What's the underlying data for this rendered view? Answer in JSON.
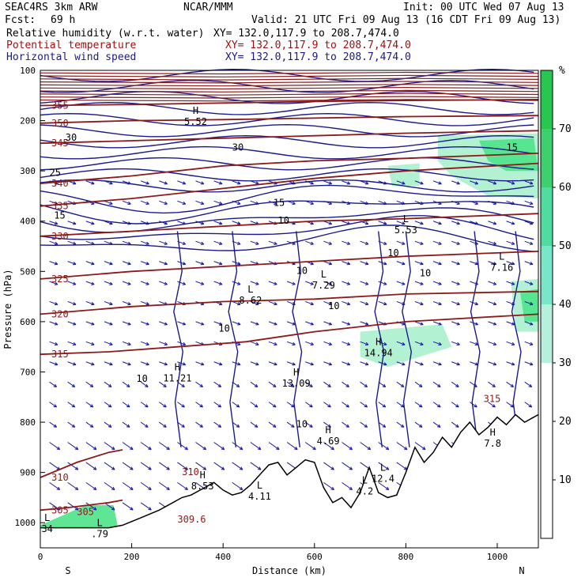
{
  "header": {
    "model": "SEAC4RS 3km ARW",
    "org": "NCAR/MMM",
    "init": "Init: 00 UTC Wed 07 Aug 13",
    "fcst_label": "Fcst:",
    "fcst_value": "69 h",
    "valid": "Valid: 21 UTC Fri 09 Aug 13 (16 CDT Fri 09 Aug 13)",
    "fields": [
      {
        "name": "Relative humidity (w.r.t. water)",
        "xy": "XY= 132.0,117.9 to 208.7,474.0"
      },
      {
        "name": "Potential temperature",
        "xy": "XY= 132.0,117.9 to 208.7,474.0"
      },
      {
        "name": "Horizontal wind speed",
        "xy": "XY= 132.0,117.9 to 208.7,474.0"
      }
    ]
  },
  "colors": {
    "rh_fill": "#4de38a",
    "rh_light": "#aaf0cc",
    "theta": "#8b1a1a",
    "wind_speed": "#1a1a8a",
    "vectors": "#1a1aa0",
    "terrain": "#000000"
  },
  "chart_data": {
    "type": "cross-section",
    "xlabel": "Distance (km)",
    "ylabel": "Pressure (hPa)",
    "x_ticks": [
      0,
      200,
      400,
      600,
      800,
      1000
    ],
    "y_ticks": [
      100,
      200,
      300,
      400,
      500,
      600,
      700,
      800,
      900,
      1000
    ],
    "xlim": [
      0,
      1090
    ],
    "ylim": [
      1050,
      100
    ],
    "endpoints": {
      "left": "S",
      "right": "N"
    },
    "colorbar": {
      "unit": "%",
      "ticks": [
        10,
        20,
        30,
        40,
        50,
        60,
        70
      ],
      "colors": [
        "#ffffff",
        "#ffffff",
        "#ffffff",
        "#b4f0dc",
        "#78e6c8",
        "#50dca0",
        "#3cd06e",
        "#28c850"
      ]
    },
    "theta_contours": [
      {
        "label": "305",
        "values": [
          [
            0,
            975
          ],
          [
            60,
            970
          ],
          [
            150,
            960
          ],
          [
            180,
            955
          ]
        ]
      },
      {
        "label": "310",
        "values": [
          [
            0,
            910
          ],
          [
            80,
            880
          ],
          [
            150,
            860
          ],
          [
            180,
            855
          ]
        ]
      },
      {
        "label": "315",
        "values": [
          [
            0,
            665
          ],
          [
            150,
            660
          ],
          [
            300,
            650
          ],
          [
            450,
            640
          ],
          [
            600,
            620
          ],
          [
            800,
            600
          ],
          [
            1090,
            585
          ]
        ]
      },
      {
        "label": "320",
        "values": [
          [
            0,
            585
          ],
          [
            200,
            570
          ],
          [
            400,
            560
          ],
          [
            600,
            555
          ],
          [
            800,
            545
          ],
          [
            1090,
            540
          ]
        ]
      },
      {
        "label": "325",
        "values": [
          [
            0,
            515
          ],
          [
            200,
            500
          ],
          [
            400,
            490
          ],
          [
            600,
            480
          ],
          [
            800,
            470
          ],
          [
            1090,
            460
          ]
        ]
      },
      {
        "label": "330",
        "values": [
          [
            0,
            430
          ],
          [
            200,
            420
          ],
          [
            400,
            410
          ],
          [
            600,
            400
          ],
          [
            800,
            395
          ],
          [
            1090,
            385
          ]
        ]
      },
      {
        "label": "335",
        "values": [
          [
            0,
            370
          ],
          [
            200,
            355
          ],
          [
            400,
            335
          ],
          [
            600,
            315
          ],
          [
            800,
            300
          ],
          [
            1090,
            285
          ]
        ]
      },
      {
        "label": "340",
        "values": [
          [
            0,
            325
          ],
          [
            200,
            310
          ],
          [
            400,
            290
          ],
          [
            600,
            280
          ],
          [
            800,
            275
          ],
          [
            1090,
            265
          ]
        ]
      },
      {
        "label": "345",
        "values": [
          [
            0,
            245
          ],
          [
            200,
            240
          ],
          [
            400,
            235
          ],
          [
            600,
            230
          ],
          [
            800,
            225
          ],
          [
            1090,
            220
          ]
        ]
      },
      {
        "label": "350",
        "values": [
          [
            0,
            205
          ],
          [
            200,
            200
          ],
          [
            400,
            198
          ],
          [
            600,
            195
          ],
          [
            800,
            192
          ],
          [
            1090,
            190
          ]
        ]
      },
      {
        "label": "355",
        "values": [
          [
            0,
            170
          ],
          [
            200,
            168
          ],
          [
            400,
            165
          ],
          [
            600,
            162
          ],
          [
            800,
            160
          ],
          [
            1090,
            158
          ]
        ]
      }
    ],
    "speed_labels": [
      {
        "text": "25",
        "x": 20,
        "y": 310
      },
      {
        "text": "30",
        "x": 55,
        "y": 240
      },
      {
        "text": "15",
        "x": 30,
        "y": 395
      },
      {
        "text": "10",
        "x": 520,
        "y": 405
      },
      {
        "text": "10",
        "x": 560,
        "y": 505
      },
      {
        "text": "10",
        "x": 390,
        "y": 620
      },
      {
        "text": "10",
        "x": 630,
        "y": 575
      },
      {
        "text": "10",
        "x": 760,
        "y": 470
      },
      {
        "text": "10",
        "x": 830,
        "y": 510
      },
      {
        "text": "10",
        "x": 210,
        "y": 720
      },
      {
        "text": "10",
        "x": 560,
        "y": 810
      },
      {
        "text": "30",
        "x": 420,
        "y": 260
      },
      {
        "text": "15",
        "x": 510,
        "y": 370
      },
      {
        "text": "15",
        "x": 1020,
        "y": 260
      }
    ],
    "extrema": [
      {
        "type": "L",
        "value": "5.53",
        "x": 800,
        "y": 405
      },
      {
        "type": "L",
        "value": "7.16",
        "x": 1010,
        "y": 480
      },
      {
        "type": "L",
        "value": "7.29",
        "x": 620,
        "y": 515
      },
      {
        "type": "L",
        "value": "8.62",
        "x": 460,
        "y": 545
      },
      {
        "type": "H",
        "value": "14.94",
        "x": 740,
        "y": 650
      },
      {
        "type": "H",
        "value": "11.21",
        "x": 300,
        "y": 700
      },
      {
        "type": "H",
        "value": "13.09",
        "x": 560,
        "y": 710
      },
      {
        "type": "H",
        "value": "4.69",
        "x": 630,
        "y": 825
      },
      {
        "type": "H",
        "value": "8.53",
        "x": 355,
        "y": 915
      },
      {
        "type": "L",
        "value": "4.11",
        "x": 480,
        "y": 935
      },
      {
        "type": "L",
        "value": "12.4",
        "x": 750,
        "y": 900
      },
      {
        "type": "L",
        "value": "4.2",
        "x": 710,
        "y": 925
      },
      {
        "type": "L",
        "value": "34",
        "x": 15,
        "y": 1000
      },
      {
        "type": "L",
        "value": ".79",
        "x": 130,
        "y": 1010
      },
      {
        "type": "H",
        "value": "7.8",
        "x": 990,
        "y": 830
      },
      {
        "type": "H",
        "value": "5.52",
        "x": 340,
        "y": 190
      }
    ],
    "theta_extra_labels": [
      {
        "text": "305",
        "x": 80,
        "y": 985
      },
      {
        "text": "310",
        "x": 310,
        "y": 905
      },
      {
        "text": "309.6",
        "x": 300,
        "y": 1000
      },
      {
        "text": "315",
        "x": 970,
        "y": 760
      }
    ],
    "terrain": [
      [
        0,
        1010
      ],
      [
        100,
        1010
      ],
      [
        150,
        1010
      ],
      [
        180,
        1005
      ],
      [
        220,
        990
      ],
      [
        260,
        975
      ],
      [
        290,
        960
      ],
      [
        310,
        950
      ],
      [
        330,
        945
      ],
      [
        360,
        930
      ],
      [
        380,
        920
      ],
      [
        400,
        935
      ],
      [
        420,
        945
      ],
      [
        440,
        940
      ],
      [
        460,
        925
      ],
      [
        480,
        905
      ],
      [
        500,
        885
      ],
      [
        520,
        880
      ],
      [
        540,
        905
      ],
      [
        560,
        890
      ],
      [
        580,
        875
      ],
      [
        600,
        880
      ],
      [
        620,
        930
      ],
      [
        640,
        960
      ],
      [
        660,
        950
      ],
      [
        680,
        970
      ],
      [
        700,
        940
      ],
      [
        720,
        890
      ],
      [
        740,
        940
      ],
      [
        760,
        950
      ],
      [
        780,
        945
      ],
      [
        800,
        900
      ],
      [
        820,
        850
      ],
      [
        840,
        880
      ],
      [
        860,
        860
      ],
      [
        880,
        830
      ],
      [
        900,
        850
      ],
      [
        920,
        820
      ],
      [
        940,
        800
      ],
      [
        960,
        825
      ],
      [
        980,
        810
      ],
      [
        1000,
        790
      ],
      [
        1020,
        805
      ],
      [
        1040,
        785
      ],
      [
        1060,
        800
      ],
      [
        1080,
        790
      ],
      [
        1090,
        785
      ]
    ]
  }
}
